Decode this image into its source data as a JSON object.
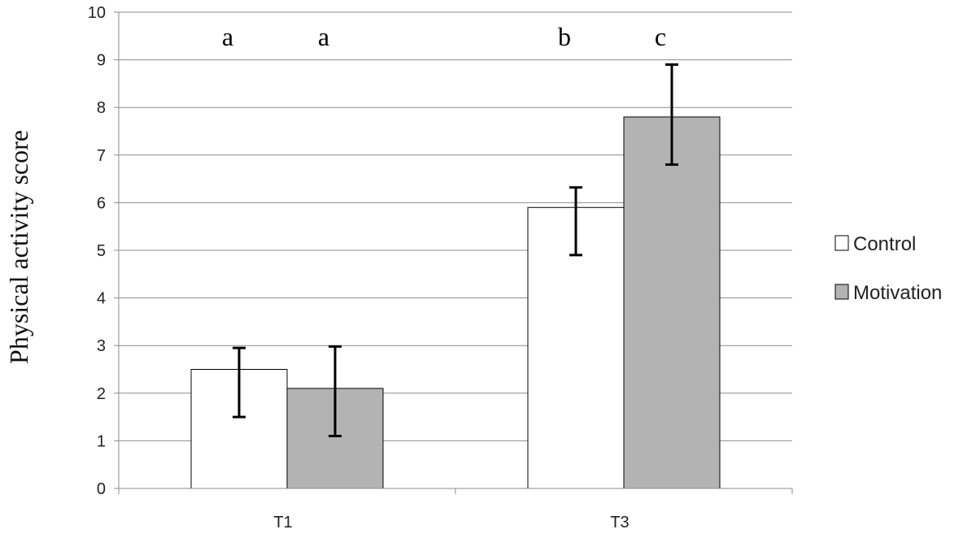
{
  "chart_data": {
    "type": "bar",
    "title": "",
    "xlabel": "",
    "ylabel": "Physical activity score",
    "ylim": [
      0,
      10
    ],
    "yticks": [
      "0",
      "1",
      "2",
      "3",
      "4",
      "5",
      "6",
      "7",
      "8",
      "9",
      "10"
    ],
    "grid": true,
    "categories": [
      "T1",
      "T3"
    ],
    "series": [
      {
        "name": "Control",
        "values": [
          2.5,
          5.9
        ],
        "error_low": [
          1.5,
          4.9
        ],
        "error_high": [
          2.95,
          6.32
        ],
        "color": "#ffffff"
      },
      {
        "name": "Motivation",
        "values": [
          2.1,
          7.8
        ],
        "error_low": [
          1.1,
          6.8
        ],
        "error_high": [
          2.98,
          8.9
        ],
        "color": "#b3b3b3"
      }
    ],
    "significance_letters": [
      [
        "a",
        "a"
      ],
      [
        "b",
        "c"
      ]
    ],
    "legend": {
      "placement": "right",
      "entries": [
        "Control",
        "Motivation"
      ]
    }
  }
}
